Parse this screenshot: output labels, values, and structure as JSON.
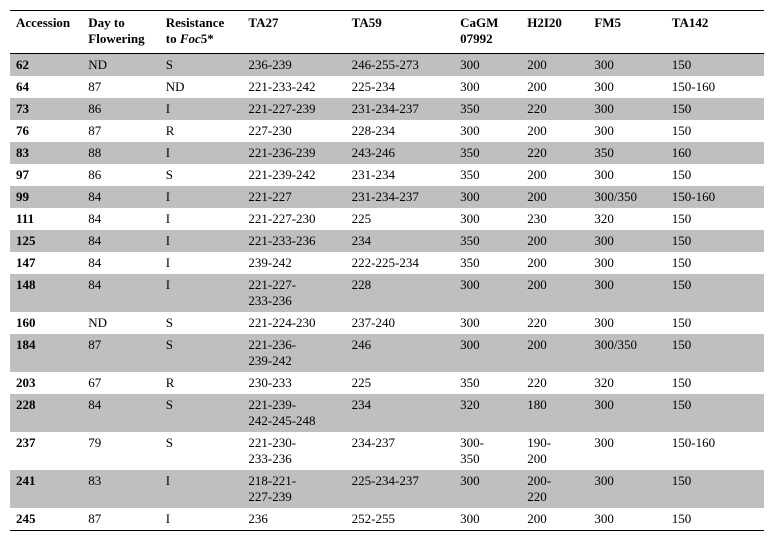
{
  "columns": [
    {
      "key": "accession",
      "label": "Accession"
    },
    {
      "key": "day",
      "label_line1": "Day to",
      "label_line2": "Flowering"
    },
    {
      "key": "res",
      "label_line1": "Resistance",
      "label_line2_prefix": "to ",
      "label_line2_italic": "Foc",
      "label_line2_suffix": "5*"
    },
    {
      "key": "ta27",
      "label": "TA27"
    },
    {
      "key": "ta59",
      "label": "TA59"
    },
    {
      "key": "cagm",
      "label_line1": "CaGM",
      "label_line2": "07992"
    },
    {
      "key": "h2i20",
      "label": "H2I20"
    },
    {
      "key": "fm5",
      "label": "FM5"
    },
    {
      "key": "ta142",
      "label": "TA142"
    }
  ],
  "rows": [
    {
      "shaded": true,
      "accession": "62",
      "day": "ND",
      "res": "S",
      "ta27": "236-239",
      "ta59": "246-255-273",
      "cagm": "300",
      "h2i20": "200",
      "fm5": "300",
      "ta142": "150"
    },
    {
      "shaded": false,
      "accession": "64",
      "day": "87",
      "res": "ND",
      "ta27": "221-233-242",
      "ta59": "225-234",
      "cagm": "300",
      "h2i20": "200",
      "fm5": "300",
      "ta142": "150-160"
    },
    {
      "shaded": true,
      "accession": "73",
      "day": "86",
      "res": "I",
      "ta27": "221-227-239",
      "ta59": "231-234-237",
      "cagm": "350",
      "h2i20": "220",
      "fm5": "300",
      "ta142": "150"
    },
    {
      "shaded": false,
      "accession": "76",
      "day": "87",
      "res": "R",
      "ta27": "227-230",
      "ta59": "228-234",
      "cagm": "300",
      "h2i20": "200",
      "fm5": "300",
      "ta142": "150"
    },
    {
      "shaded": true,
      "accession": "83",
      "day": "88",
      "res": "I",
      "ta27": "221-236-239",
      "ta59": "243-246",
      "cagm": "350",
      "h2i20": "220",
      "fm5": "350",
      "ta142": "160"
    },
    {
      "shaded": false,
      "accession": "97",
      "day": "86",
      "res": "S",
      "ta27": "221-239-242",
      "ta59": "231-234",
      "cagm": "350",
      "h2i20": "200",
      "fm5": "300",
      "ta142": "150"
    },
    {
      "shaded": true,
      "accession": "99",
      "day": "84",
      "res": "I",
      "ta27": "221-227",
      "ta59": "231-234-237",
      "cagm": "300",
      "h2i20": "200",
      "fm5": "300/350",
      "ta142": "150-160"
    },
    {
      "shaded": false,
      "accession": "111",
      "day": "84",
      "res": "I",
      "ta27": "221-227-230",
      "ta59": "225",
      "cagm": "300",
      "h2i20": "230",
      "fm5": "320",
      "ta142": "150"
    },
    {
      "shaded": true,
      "accession": "125",
      "day": "84",
      "res": "I",
      "ta27": "221-233-236",
      "ta59": "234",
      "cagm": "350",
      "h2i20": "200",
      "fm5": "300",
      "ta142": "150"
    },
    {
      "shaded": false,
      "accession": "147",
      "day": "84",
      "res": "I",
      "ta27": "239-242",
      "ta59": "222-225-234",
      "cagm": "350",
      "h2i20": "200",
      "fm5": "300",
      "ta142": "150"
    },
    {
      "shaded": true,
      "accession": "148",
      "day": "84",
      "res": "I",
      "ta27": "221-227-\n233-236",
      "ta59": "228",
      "cagm": "300",
      "h2i20": "200",
      "fm5": "300",
      "ta142": "150"
    },
    {
      "shaded": false,
      "accession": "160",
      "day": "ND",
      "res": "S",
      "ta27": "221-224-230",
      "ta59": "237-240",
      "cagm": "300",
      "h2i20": "220",
      "fm5": "300",
      "ta142": "150"
    },
    {
      "shaded": true,
      "accession": "184",
      "day": "87",
      "res": "S",
      "ta27": "221-236-\n239-242",
      "ta59": "246",
      "cagm": "300",
      "h2i20": "200",
      "fm5": "300/350",
      "ta142": "150"
    },
    {
      "shaded": false,
      "accession": "203",
      "day": "67",
      "res": "R",
      "ta27": "230-233",
      "ta59": "225",
      "cagm": "350",
      "h2i20": "220",
      "fm5": "320",
      "ta142": "150"
    },
    {
      "shaded": true,
      "accession": "228",
      "day": "84",
      "res": "S",
      "ta27": "221-239-\n242-245-248",
      "ta59": "234",
      "cagm": "320",
      "h2i20": "180",
      "fm5": "300",
      "ta142": "150"
    },
    {
      "shaded": false,
      "accession": "237",
      "day": "79",
      "res": "S",
      "ta27": "221-230-\n233-236",
      "ta59": "234-237",
      "cagm": "300-\n350",
      "h2i20": "190-\n200",
      "fm5": "300",
      "ta142": "150-160"
    },
    {
      "shaded": true,
      "accession": "241",
      "day": "83",
      "res": "I",
      "ta27": "218-221-\n227-239",
      "ta59": "225-234-237",
      "cagm": "300",
      "h2i20": "200-\n220",
      "fm5": "300",
      "ta142": "150"
    },
    {
      "shaded": false,
      "accession": "245",
      "day": "87",
      "res": "I",
      "ta27": "236",
      "ta59": "252-255",
      "cagm": "300",
      "h2i20": "200",
      "fm5": "300",
      "ta142": "150"
    }
  ]
}
